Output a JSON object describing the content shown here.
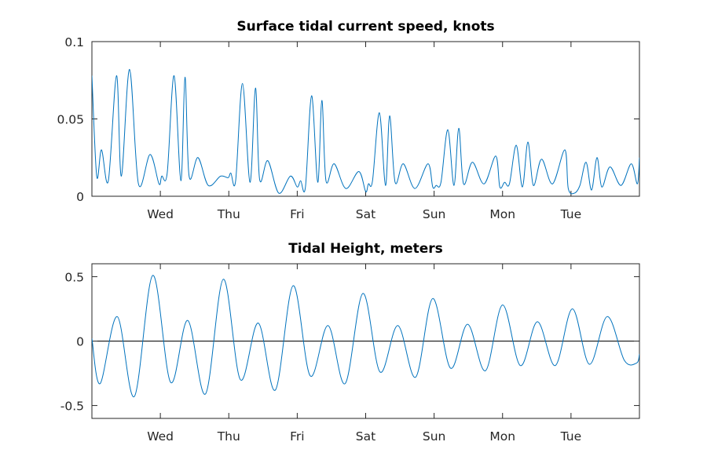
{
  "colors": {
    "series": "#0072bd",
    "axis": "#262626",
    "zero_line": "#000000"
  },
  "chart_data": [
    {
      "type": "line",
      "title": "Surface tidal current speed, knots",
      "xlabel": "",
      "ylabel": "",
      "x_unit": "days",
      "xlim": [
        0,
        8
      ],
      "ylim": [
        0,
        0.1
      ],
      "grid": false,
      "x_ticks": [
        {
          "value": 1,
          "label": "Wed"
        },
        {
          "value": 2,
          "label": "Thu"
        },
        {
          "value": 3,
          "label": "Fri"
        },
        {
          "value": 4,
          "label": "Sat"
        },
        {
          "value": 5,
          "label": "Sun"
        },
        {
          "value": 6,
          "label": "Mon"
        },
        {
          "value": 7,
          "label": "Tue"
        }
      ],
      "y_ticks": [
        {
          "value": 0,
          "label": "0"
        },
        {
          "value": 0.05,
          "label": "0.05"
        },
        {
          "value": 0.1,
          "label": "0.1"
        }
      ],
      "series": [
        {
          "x": [
            0,
            0.07,
            0.14,
            0.24,
            0.36,
            0.43,
            0.55,
            0.68,
            0.85,
            0.98,
            1.02,
            1.1,
            1.2,
            1.3,
            1.36,
            1.42,
            1.55,
            1.7,
            1.88,
            1.99,
            2.03,
            2.1,
            2.2,
            2.31,
            2.39,
            2.45,
            2.57,
            2.73,
            2.9,
            3.0,
            3.05,
            3.12,
            3.21,
            3.3,
            3.36,
            3.42,
            3.54,
            3.71,
            3.9,
            4.0,
            4.04,
            4.1,
            4.2,
            4.29,
            4.35,
            4.43,
            4.55,
            4.72,
            4.91,
            4.98,
            5.03,
            5.1,
            5.2,
            5.29,
            5.36,
            5.43,
            5.56,
            5.73,
            5.9,
            5.96,
            6.03,
            6.1,
            6.2,
            6.29,
            6.37,
            6.45,
            6.57,
            6.73,
            6.91,
            6.96,
            7.05,
            7.13,
            7.22,
            7.3,
            7.38,
            7.45,
            7.57,
            7.73,
            7.88,
            7.97,
            8.0
          ],
          "y": [
            0.078,
            0.013,
            0.03,
            0.01,
            0.078,
            0.013,
            0.082,
            0.008,
            0.027,
            0.008,
            0.013,
            0.015,
            0.078,
            0.01,
            0.077,
            0.013,
            0.025,
            0.007,
            0.013,
            0.012,
            0.015,
            0.01,
            0.073,
            0.009,
            0.07,
            0.011,
            0.023,
            0.002,
            0.013,
            0.006,
            0.01,
            0.006,
            0.065,
            0.009,
            0.062,
            0.01,
            0.021,
            0.005,
            0.016,
            0.003,
            0.008,
            0.01,
            0.054,
            0.007,
            0.052,
            0.009,
            0.021,
            0.005,
            0.021,
            0.006,
            0.007,
            0.009,
            0.043,
            0.007,
            0.044,
            0.008,
            0.022,
            0.008,
            0.026,
            0.006,
            0.009,
            0.008,
            0.033,
            0.006,
            0.035,
            0.007,
            0.024,
            0.008,
            0.03,
            0.005,
            0.002,
            0.007,
            0.022,
            0.004,
            0.025,
            0.006,
            0.019,
            0.007,
            0.021,
            0.008,
            0.025
          ]
        }
      ]
    },
    {
      "type": "line",
      "title": "Tidal Height, meters",
      "xlabel": "",
      "ylabel": "",
      "x_unit": "days",
      "xlim": [
        0,
        8
      ],
      "ylim": [
        -0.6,
        0.6
      ],
      "grid": false,
      "zero_line": true,
      "x_ticks": [
        {
          "value": 1,
          "label": "Wed"
        },
        {
          "value": 2,
          "label": "Thu"
        },
        {
          "value": 3,
          "label": "Fri"
        },
        {
          "value": 4,
          "label": "Sat"
        },
        {
          "value": 5,
          "label": "Sun"
        },
        {
          "value": 6,
          "label": "Mon"
        },
        {
          "value": 7,
          "label": "Tue"
        }
      ],
      "y_ticks": [
        {
          "value": -0.5,
          "label": "-0.5"
        },
        {
          "value": 0,
          "label": "0"
        },
        {
          "value": 0.5,
          "label": "0.5"
        }
      ],
      "series": [
        {
          "x": [
            0,
            0.12,
            0.37,
            0.62,
            0.89,
            1.15,
            1.4,
            1.66,
            1.92,
            2.17,
            2.43,
            2.68,
            2.94,
            3.19,
            3.45,
            3.7,
            3.96,
            4.21,
            4.47,
            4.73,
            4.98,
            5.24,
            5.49,
            5.75,
            6.0,
            6.26,
            6.51,
            6.77,
            7.02,
            7.27,
            7.53,
            7.78,
            7.96,
            8.0
          ],
          "y": [
            0.02,
            -0.33,
            0.19,
            -0.43,
            0.51,
            -0.32,
            0.16,
            -0.41,
            0.48,
            -0.3,
            0.14,
            -0.38,
            0.43,
            -0.27,
            0.12,
            -0.33,
            0.37,
            -0.24,
            0.12,
            -0.28,
            0.33,
            -0.21,
            0.13,
            -0.23,
            0.28,
            -0.19,
            0.15,
            -0.19,
            0.25,
            -0.18,
            0.19,
            -0.15,
            -0.17,
            -0.1
          ]
        }
      ]
    }
  ]
}
